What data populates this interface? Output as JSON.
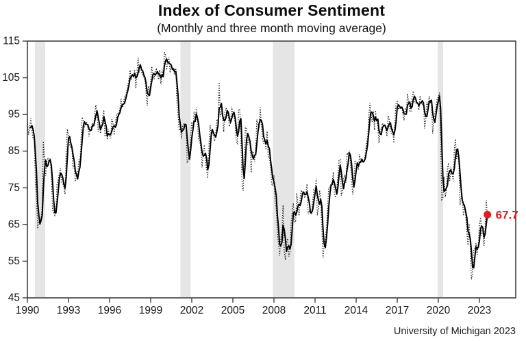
{
  "chart_data": {
    "type": "line",
    "title": "Index of Consumer Sentiment",
    "subtitle": "(Monthly and three month moving average)",
    "source": "University of Michigan 2023",
    "xlim": [
      1990,
      2025.65
    ],
    "ylim": [
      45,
      115
    ],
    "x_ticks": [
      1990,
      1993,
      1996,
      1999,
      2002,
      2005,
      2008,
      2011,
      2014,
      2017,
      2020,
      2023
    ],
    "y_ticks": [
      45,
      55,
      65,
      75,
      85,
      95,
      105,
      115
    ],
    "grid": false,
    "legend_position": "none",
    "recession_bands": [
      {
        "start": 1990.55,
        "end": 1991.3
      },
      {
        "start": 2001.17,
        "end": 2001.92
      },
      {
        "start": 2007.92,
        "end": 2009.5
      },
      {
        "start": 2019.95,
        "end": 2020.35
      }
    ],
    "series": [
      {
        "name": "Monthly index",
        "style": "dotted",
        "x_start_year": 1990,
        "x_step": "month",
        "values": [
          93.0,
          89.5,
          91.3,
          93.9,
          90.6,
          88.3,
          88.2,
          76.4,
          72.8,
          63.9,
          66.0,
          65.5,
          66.8,
          70.4,
          87.7,
          81.8,
          78.3,
          82.1,
          82.9,
          82.0,
          83.0,
          78.3,
          69.1,
          68.2,
          67.5,
          68.8,
          76.0,
          77.2,
          79.2,
          80.4,
          76.6,
          76.1,
          75.3,
          73.3,
          85.3,
          91.0,
          89.3,
          86.6,
          85.9,
          85.6,
          80.3,
          81.5,
          77.0,
          77.3,
          77.9,
          82.7,
          81.2,
          88.2,
          94.3,
          93.2,
          91.5,
          92.6,
          92.8,
          91.2,
          89.0,
          91.7,
          91.5,
          92.7,
          91.6,
          95.1,
          97.6,
          95.1,
          90.3,
          92.5,
          89.8,
          92.7,
          94.4,
          96.2,
          88.9,
          90.2,
          88.2,
          91.0,
          89.3,
          88.5,
          93.7,
          92.7,
          89.4,
          92.4,
          94.7,
          95.3,
          94.7,
          96.5,
          99.2,
          96.9,
          97.4,
          99.7,
          100.0,
          101.4,
          103.2,
          104.5,
          107.1,
          104.4,
          106.0,
          105.6,
          107.2,
          102.1,
          106.6,
          110.4,
          106.5,
          108.7,
          106.5,
          105.6,
          105.2,
          104.4,
          100.9,
          97.4,
          102.7,
          100.5,
          103.9,
          108.1,
          105.7,
          104.6,
          106.8,
          107.3,
          106.0,
          104.5,
          107.2,
          103.2,
          107.2,
          105.4,
          112.0,
          111.3,
          107.1,
          109.2,
          110.7,
          106.4,
          108.3,
          107.3,
          106.8,
          105.8,
          107.6,
          98.4,
          94.7,
          90.6,
          91.5,
          88.4,
          92.0,
          92.6,
          92.4,
          91.5,
          81.8,
          82.7,
          83.9,
          88.8,
          93.0,
          90.7,
          95.7,
          93.0,
          96.9,
          92.4,
          88.1,
          87.6,
          86.1,
          80.6,
          84.2,
          86.7,
          82.4,
          79.9,
          77.6,
          86.0,
          92.1,
          89.7,
          90.9,
          89.3,
          87.7,
          89.6,
          93.7,
          92.6,
          103.8,
          94.4,
          95.8,
          94.2,
          90.2,
          95.6,
          96.7,
          95.9,
          94.2,
          91.7,
          92.8,
          97.1,
          95.5,
          94.1,
          92.6,
          87.7,
          86.9,
          96.0,
          96.5,
          89.1,
          76.9,
          74.2,
          81.6,
          91.5,
          91.2,
          86.7,
          88.9,
          87.4,
          79.1,
          84.9,
          84.7,
          82.0,
          85.4,
          93.6,
          92.1,
          91.7,
          96.9,
          91.3,
          88.4,
          87.1,
          88.3,
          85.3,
          90.4,
          83.4,
          83.4,
          80.9,
          76.1,
          75.5,
          78.4,
          70.8,
          69.5,
          62.6,
          59.8,
          56.4,
          61.2,
          63.0,
          70.3,
          57.6,
          55.3,
          60.1,
          61.2,
          56.3,
          57.3,
          65.1,
          68.7,
          70.8,
          66.0,
          65.7,
          73.5,
          70.6,
          67.4,
          72.5,
          74.4,
          73.6,
          73.6,
          72.2,
          73.6,
          76.0,
          67.8,
          68.9,
          68.2,
          67.7,
          71.6,
          74.5,
          74.2,
          77.5,
          67.5,
          69.8,
          74.3,
          71.5,
          63.7,
          55.8,
          59.4,
          60.9,
          64.1,
          69.9,
          75.0,
          75.3,
          76.2,
          76.4,
          79.3,
          73.2,
          72.3,
          74.3,
          78.3,
          82.6,
          82.7,
          72.9,
          73.8,
          77.6,
          78.6,
          76.4,
          84.5,
          84.1,
          85.1,
          82.1,
          77.5,
          73.2,
          75.1,
          82.5,
          81.2,
          81.6,
          80.0,
          84.1,
          81.9,
          82.5,
          81.8,
          82.5,
          84.6,
          86.9,
          88.8,
          93.6,
          98.1,
          95.4,
          93.0,
          95.9,
          90.7,
          96.1,
          93.1,
          91.9,
          87.2,
          90.0,
          91.3,
          92.6,
          92.0,
          91.7,
          91.0,
          89.0,
          94.7,
          93.5,
          90.0,
          89.8,
          91.2,
          87.2,
          93.8,
          98.2,
          98.5,
          96.3,
          96.9,
          97.0,
          97.1,
          95.0,
          93.4,
          96.8,
          95.1,
          100.7,
          98.5,
          95.9,
          95.7,
          99.7,
          101.4,
          98.8,
          98.0,
          98.2,
          97.9,
          96.2,
          100.1,
          98.6,
          97.5,
          98.3,
          91.2,
          93.8,
          98.4,
          97.2,
          100.0,
          98.2,
          98.4,
          89.8,
          93.2,
          95.5,
          96.8,
          99.3,
          99.8,
          101.0,
          89.1,
          71.8,
          72.3,
          78.1,
          72.5,
          74.1,
          80.4,
          81.8,
          76.9,
          80.7,
          79.0,
          76.8,
          84.9,
          88.3,
          82.9,
          85.5,
          81.2,
          70.3,
          72.8,
          71.7,
          67.4,
          70.6,
          67.2,
          62.8,
          59.4,
          65.2,
          58.4,
          50.0,
          51.5,
          58.2,
          58.6,
          59.9,
          56.8,
          59.7,
          64.9,
          66.9,
          62.0,
          63.5,
          59.2,
          64.4,
          71.6,
          67.1
        ]
      },
      {
        "name": "Three month moving average",
        "style": "solid",
        "derived_from": "Monthly index",
        "window_months": 3
      }
    ],
    "end_point": {
      "label": "67.7",
      "value": 67.7
    },
    "colors": {
      "monthly_line": "#141414",
      "average_line": "#000000",
      "recession_band": "#e5e5e5",
      "frame": "#3d3d3d",
      "accent_red": "#e8191f"
    }
  }
}
